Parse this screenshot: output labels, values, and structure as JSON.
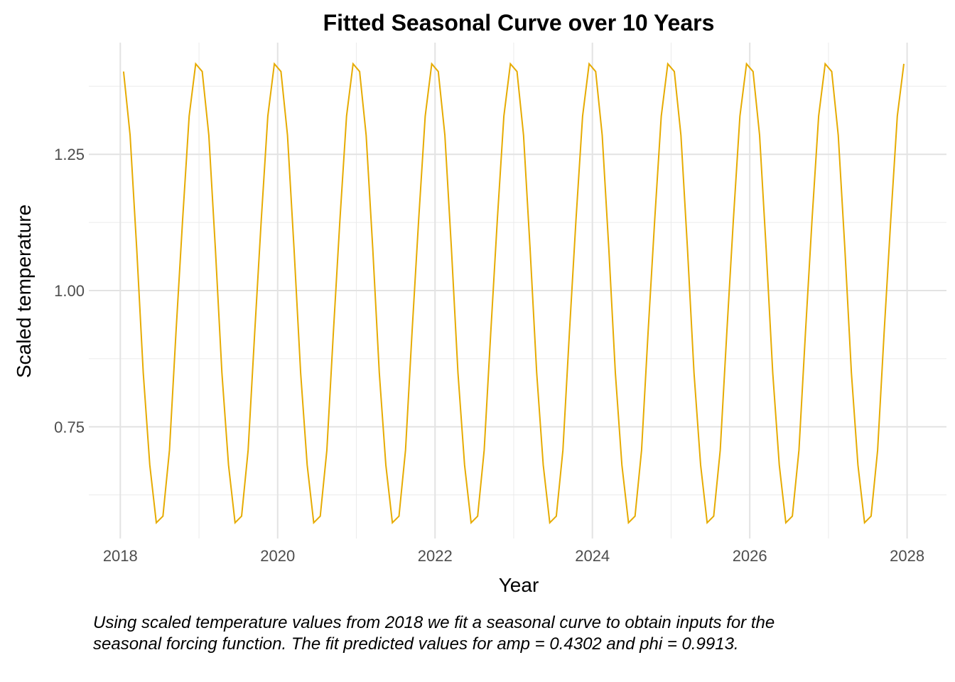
{
  "chart_data": {
    "type": "line",
    "title": "Fitted Seasonal Curve over 10 Years",
    "xlabel": "Year",
    "ylabel": "Scaled temperature",
    "caption": "Using scaled temperature values from 2018 we fit a seasonal curve to obtain inputs for the seasonal forcing function. The fit predicted values for amp = 0.4302 and phi = 0.9913.",
    "x_ticks": [
      "2018",
      "2020",
      "2022",
      "2024",
      "2026",
      "2028"
    ],
    "y_ticks": [
      "0.75",
      "1.00",
      "1.25"
    ],
    "xlim": [
      2017.6,
      2028.5
    ],
    "ylim": [
      0.545,
      1.455
    ],
    "grid": true,
    "line_color": "#E6AB02",
    "series": [
      {
        "x": [
          "2018-01",
          "2018-02",
          "2018-03",
          "2018-04",
          "2018-05",
          "2018-06",
          "2018-07",
          "2018-08",
          "2018-09",
          "2018-10",
          "2018-11",
          "2018-12",
          "2019-01",
          "2019-02",
          "2019-03",
          "2019-04",
          "2019-05",
          "2019-06",
          "2019-07",
          "2019-08",
          "2019-09",
          "2019-10",
          "2019-11",
          "2019-12",
          "2020-01",
          "2020-02",
          "2020-03",
          "2020-04",
          "2020-05",
          "2020-06",
          "2020-07",
          "2020-08",
          "2020-09",
          "2020-10",
          "2020-11",
          "2020-12",
          "2021-01",
          "2021-02",
          "2021-03",
          "2021-04",
          "2021-05",
          "2021-06",
          "2021-07",
          "2021-08",
          "2021-09",
          "2021-10",
          "2021-11",
          "2021-12",
          "2022-01",
          "2022-02",
          "2022-03",
          "2022-04",
          "2022-05",
          "2022-06",
          "2022-07",
          "2022-08",
          "2022-09",
          "2022-10",
          "2022-11",
          "2022-12",
          "2023-01",
          "2023-02",
          "2023-03",
          "2023-04",
          "2023-05",
          "2023-06",
          "2023-07",
          "2023-08",
          "2023-09",
          "2023-10",
          "2023-11",
          "2023-12",
          "2024-01",
          "2024-02",
          "2024-03",
          "2024-04",
          "2024-05",
          "2024-06",
          "2024-07",
          "2024-08",
          "2024-09",
          "2024-10",
          "2024-11",
          "2024-12",
          "2025-01",
          "2025-02",
          "2025-03",
          "2025-04",
          "2025-05",
          "2025-06",
          "2025-07",
          "2025-08",
          "2025-09",
          "2025-10",
          "2025-11",
          "2025-12",
          "2026-01",
          "2026-02",
          "2026-03",
          "2026-04",
          "2026-05",
          "2026-06",
          "2026-07",
          "2026-08",
          "2026-09",
          "2026-10",
          "2026-11",
          "2026-12",
          "2027-01",
          "2027-02",
          "2027-03",
          "2027-04",
          "2027-05",
          "2027-06",
          "2027-07",
          "2027-08",
          "2027-09",
          "2027-10",
          "2027-11",
          "2027-12"
        ],
        "y": [
          1.402,
          1.285,
          1.077,
          0.849,
          0.68,
          0.574,
          0.586,
          0.707,
          0.924,
          1.13,
          1.32,
          1.416,
          1.402,
          1.285,
          1.077,
          0.849,
          0.68,
          0.574,
          0.586,
          0.707,
          0.924,
          1.13,
          1.32,
          1.416,
          1.402,
          1.285,
          1.077,
          0.849,
          0.68,
          0.574,
          0.586,
          0.707,
          0.924,
          1.13,
          1.32,
          1.416,
          1.402,
          1.285,
          1.077,
          0.849,
          0.68,
          0.574,
          0.586,
          0.707,
          0.924,
          1.13,
          1.32,
          1.416,
          1.402,
          1.285,
          1.077,
          0.849,
          0.68,
          0.574,
          0.586,
          0.707,
          0.924,
          1.13,
          1.32,
          1.416,
          1.402,
          1.285,
          1.077,
          0.849,
          0.68,
          0.574,
          0.586,
          0.707,
          0.924,
          1.13,
          1.32,
          1.416,
          1.402,
          1.285,
          1.077,
          0.849,
          0.68,
          0.574,
          0.586,
          0.707,
          0.924,
          1.13,
          1.32,
          1.416,
          1.402,
          1.285,
          1.077,
          0.849,
          0.68,
          0.574,
          0.586,
          0.707,
          0.924,
          1.13,
          1.32,
          1.416,
          1.402,
          1.285,
          1.077,
          0.849,
          0.68,
          0.574,
          0.586,
          0.707,
          0.924,
          1.13,
          1.32,
          1.416,
          1.402,
          1.285,
          1.077,
          0.849,
          0.68,
          0.574,
          0.586,
          0.707,
          0.924,
          1.13,
          1.32,
          1.416
        ]
      }
    ]
  }
}
